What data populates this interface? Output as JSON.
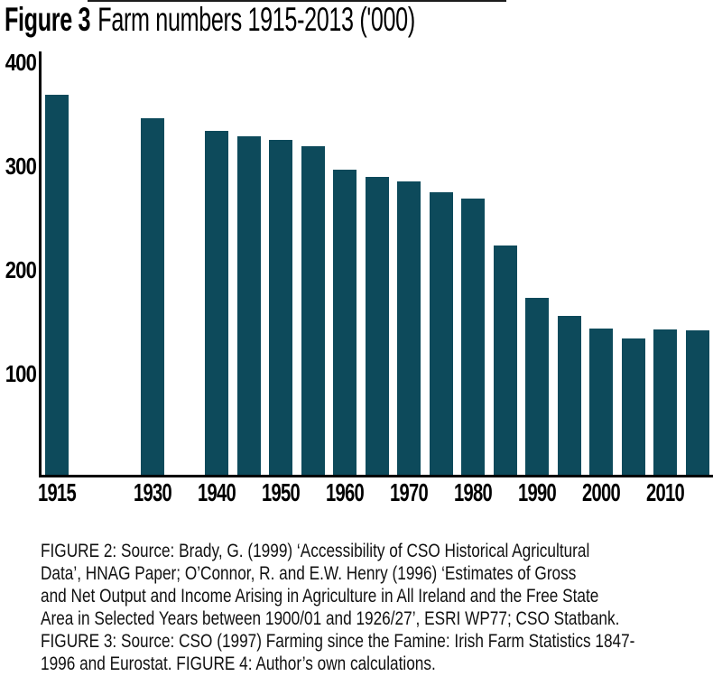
{
  "title": {
    "prefix": "Figure 3",
    "rest": "Farm numbers 1915-2013 ('000)"
  },
  "colors": {
    "bar": "#0d4a5b",
    "axis": "#000000",
    "text": "#000000",
    "caption_text": "#111111"
  },
  "chart_data": {
    "type": "bar",
    "title": "Figure 3 Farm numbers 1915-2013 ('000)",
    "xlabel": "",
    "ylabel": "",
    "ylim": [
      0,
      400
    ],
    "yticks": [
      100,
      200,
      300,
      400
    ],
    "xticks": [
      1915,
      1930,
      1940,
      1950,
      1960,
      1970,
      1980,
      1990,
      2000,
      2010
    ],
    "grid": false,
    "legend": null,
    "bar_color": "#0d4a5b",
    "x": [
      1915,
      1930,
      1940,
      1945,
      1950,
      1955,
      1960,
      1965,
      1970,
      1975,
      1980,
      1985,
      1990,
      1995,
      2000,
      2005,
      2010,
      2013
    ],
    "values": [
      368,
      345,
      333,
      328,
      324,
      318,
      296,
      289,
      284,
      274,
      268,
      223,
      172,
      155,
      143,
      133,
      142,
      141
    ]
  },
  "caption": {
    "lines": [
      "FIGURE 2: Source: Brady, G. (1999) ‘Accessibility of CSO Historical Agricultural",
      "Data’, HNAG Paper; O’Connor, R. and E.W. Henry (1996) ‘Estimates of Gross",
      "and Net Output and Income Arising in Agriculture in All Ireland and the Free State",
      "Area in Selected Years between 1900/01 and 1926/27’, ESRI WP77; CSO Statbank.",
      "FIGURE 3: Source: CSO (1997) Farming since the Famine: Irish Farm Statistics 1847-",
      "1996 and Eurostat. FIGURE 4: Author’s own calculations."
    ]
  }
}
